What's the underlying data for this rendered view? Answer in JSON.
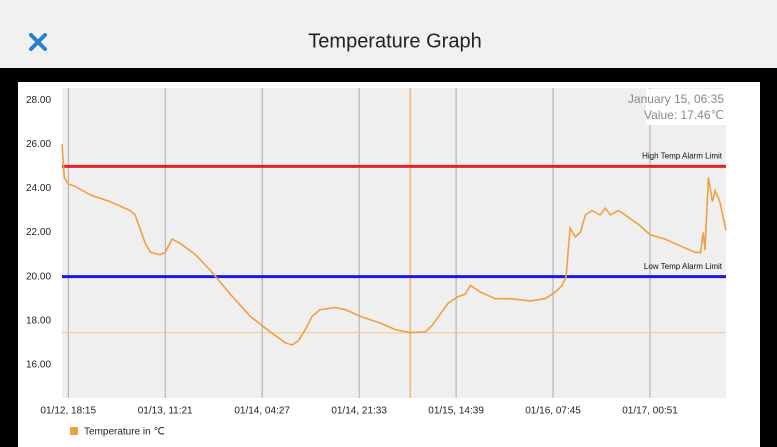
{
  "header": {
    "title": "Temperature Graph"
  },
  "chart_data": {
    "type": "line",
    "series": [
      {
        "name": "Temperature in ℃",
        "color": "#f0a040",
        "x": [
          -1.1,
          -0.7,
          0,
          1.2,
          3.9,
          7.4,
          10.9,
          11.8,
          13.6,
          14.5,
          16.2,
          17.1,
          18.3,
          19.8,
          22.4,
          25.0,
          28.6,
          32.1,
          35.6,
          38.3,
          39.5,
          40.6,
          41.8,
          43.0,
          44.4,
          47.1,
          48.9,
          51.5,
          55.0,
          57.7,
          60.3,
          63.0,
          64.2,
          65.6,
          67.0,
          68.8,
          70.0,
          70.9,
          72.7,
          75.3,
          77.9,
          81.5,
          84.1,
          85.9,
          87.1,
          87.8,
          88.5,
          89.4,
          90.3,
          91.2,
          92.4,
          93.8,
          94.7,
          95.6,
          97.0,
          98.2,
          100.9,
          102.6,
          105.3,
          107.9,
          110.6,
          111.5,
          112.0,
          112.3,
          112.9,
          113.6,
          114.1,
          114.9,
          116.0
        ],
        "values": [
          26.0,
          24.5,
          24.2,
          24.1,
          23.7,
          23.4,
          23.0,
          22.8,
          21.5,
          21.1,
          21.0,
          21.1,
          21.7,
          21.5,
          21.0,
          20.3,
          19.2,
          18.2,
          17.5,
          17.0,
          16.9,
          17.1,
          17.6,
          18.2,
          18.5,
          18.6,
          18.5,
          18.2,
          17.9,
          17.6,
          17.46,
          17.5,
          17.8,
          18.3,
          18.8,
          19.1,
          19.2,
          19.6,
          19.3,
          19.0,
          19.0,
          18.9,
          19.0,
          19.3,
          19.6,
          20.0,
          22.2,
          21.8,
          22.0,
          22.8,
          23.0,
          22.8,
          23.1,
          22.8,
          23.0,
          22.8,
          22.3,
          21.9,
          21.7,
          21.4,
          21.1,
          21.1,
          22.0,
          21.2,
          24.5,
          23.4,
          23.9,
          23.4,
          22.1
        ]
      }
    ],
    "limits": [
      {
        "name": "High Temp Alarm Limit",
        "value": 25,
        "color": "#e8202a"
      },
      {
        "name": "Low Temp Alarm Limit",
        "value": 20,
        "color": "#1a1ae0"
      }
    ],
    "cursor": {
      "x": 60.3,
      "value": 17.46,
      "label": "January 15, 06:35",
      "value_label": "Value: 17.46℃"
    },
    "xlim": [
      -1.1,
      116
    ],
    "xticks": [
      {
        "value": 0,
        "label": "01/12, 18:15"
      },
      {
        "value": 17.1,
        "label": "01/13, 11:21"
      },
      {
        "value": 34.2,
        "label": "01/14, 04:27"
      },
      {
        "value": 51.3,
        "label": "01/14, 21:33"
      },
      {
        "value": 68.4,
        "label": "01/15, 14:39"
      },
      {
        "value": 85.5,
        "label": "01/16, 07:45"
      },
      {
        "value": 102.6,
        "label": "01/17, 00:51"
      }
    ],
    "ylim": [
      14.5,
      28.55
    ],
    "yticks": [
      {
        "value": 16,
        "label": "16.00"
      },
      {
        "value": 18,
        "label": "18.00"
      },
      {
        "value": 20,
        "label": "20.00"
      },
      {
        "value": 22,
        "label": "22.00"
      },
      {
        "value": 24,
        "label": "24.00"
      },
      {
        "value": 26,
        "label": "26.00"
      },
      {
        "value": 28,
        "label": "28.00"
      }
    ],
    "grid": "x"
  }
}
